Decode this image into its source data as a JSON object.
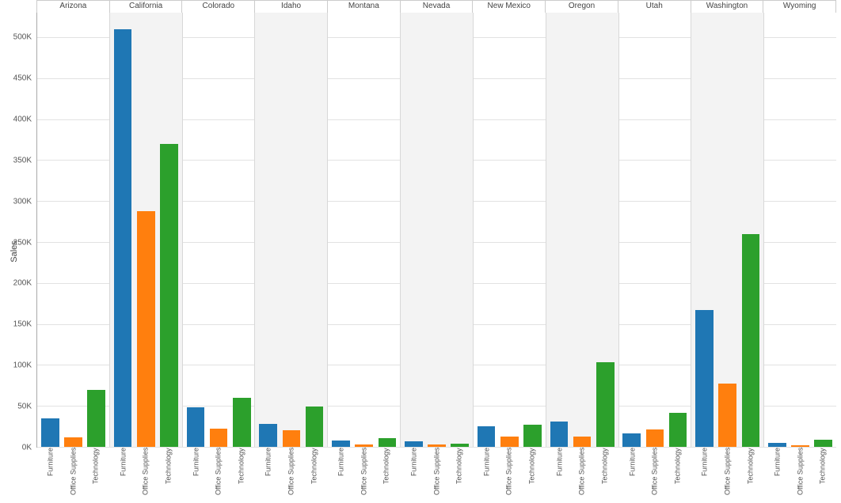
{
  "chart": {
    "type": "bar",
    "y_axis_label": "Sales",
    "y_max": 530000,
    "y_min": 0,
    "y_ticks": [
      {
        "v": 0,
        "label": "0K"
      },
      {
        "v": 50000,
        "label": "50K"
      },
      {
        "v": 100000,
        "label": "100K"
      },
      {
        "v": 150000,
        "label": "150K"
      },
      {
        "v": 200000,
        "label": "200K"
      },
      {
        "v": 250000,
        "label": "250K"
      },
      {
        "v": 300000,
        "label": "300K"
      },
      {
        "v": 350000,
        "label": "350K"
      },
      {
        "v": 400000,
        "label": "400K"
      },
      {
        "v": 450000,
        "label": "450K"
      },
      {
        "v": 500000,
        "label": "500K"
      }
    ],
    "categories": [
      "Furniture",
      "Office Supplies",
      "Technology"
    ],
    "colors": {
      "Furniture": "#1f77b4",
      "Office Supplies": "#ff7f0e",
      "Technology": "#2ca02c"
    },
    "panel_alt_bg": "#f3f3f3",
    "background_color": "#ffffff",
    "grid_color": "#e2e2e2",
    "label_fontsize": 10,
    "panels": [
      {
        "state": "Arizona",
        "shaded": false,
        "values": {
          "Furniture": 35000,
          "Office Supplies": 12000,
          "Technology": 70000
        }
      },
      {
        "state": "California",
        "shaded": true,
        "values": {
          "Furniture": 510000,
          "Office Supplies": 288000,
          "Technology": 370000
        }
      },
      {
        "state": "Colorado",
        "shaded": false,
        "values": {
          "Furniture": 48000,
          "Office Supplies": 22000,
          "Technology": 60000
        }
      },
      {
        "state": "Idaho",
        "shaded": true,
        "values": {
          "Furniture": 28000,
          "Office Supplies": 20000,
          "Technology": 49000
        }
      },
      {
        "state": "Montana",
        "shaded": false,
        "values": {
          "Furniture": 8000,
          "Office Supplies": 3000,
          "Technology": 11000
        }
      },
      {
        "state": "Nevada",
        "shaded": true,
        "values": {
          "Furniture": 7000,
          "Office Supplies": 3000,
          "Technology": 4000
        }
      },
      {
        "state": "New Mexico",
        "shaded": false,
        "values": {
          "Furniture": 25000,
          "Office Supplies": 13000,
          "Technology": 27000
        }
      },
      {
        "state": "Oregon",
        "shaded": true,
        "values": {
          "Furniture": 31000,
          "Office Supplies": 13000,
          "Technology": 103000
        }
      },
      {
        "state": "Utah",
        "shaded": false,
        "values": {
          "Furniture": 16000,
          "Office Supplies": 21000,
          "Technology": 42000
        }
      },
      {
        "state": "Washington",
        "shaded": true,
        "values": {
          "Furniture": 167000,
          "Office Supplies": 77000,
          "Technology": 260000
        }
      },
      {
        "state": "Wyoming",
        "shaded": false,
        "values": {
          "Furniture": 5000,
          "Office Supplies": 2000,
          "Technology": 9000
        }
      }
    ]
  }
}
